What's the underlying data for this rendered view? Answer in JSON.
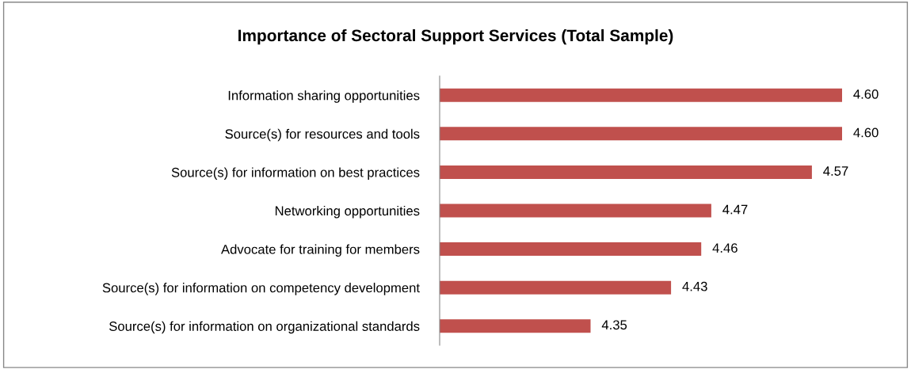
{
  "chart_data": {
    "type": "bar",
    "orientation": "horizontal",
    "title": "Importance of Sectoral Support Services (Total Sample)",
    "categories": [
      "Information sharing opportunities",
      "Source(s) for resources and tools",
      "Source(s) for information on best practices",
      "Networking opportunities",
      "Advocate for training for members",
      "Source(s) for information on competency development",
      "Source(s) for information on organizational standards"
    ],
    "values": [
      4.6,
      4.6,
      4.57,
      4.47,
      4.46,
      4.43,
      4.35
    ],
    "value_labels": [
      "4.60",
      "4.60",
      "4.57",
      "4.47",
      "4.46",
      "4.43",
      "4.35"
    ],
    "color": "#c0504d",
    "xlim": [
      4.2,
      4.6
    ],
    "tick_labels": "y",
    "grid": false,
    "legend": false
  }
}
